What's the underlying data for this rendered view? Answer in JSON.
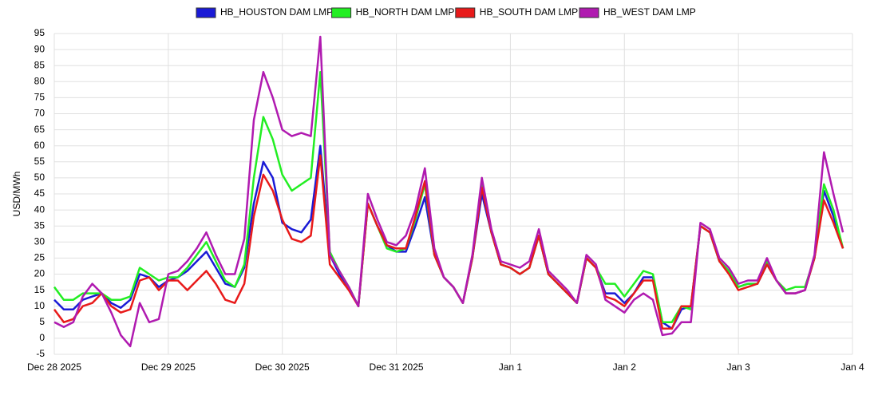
{
  "chart_data": {
    "type": "line",
    "y_label": "USD/MWh",
    "legend": "top",
    "grid": true,
    "x": [
      0,
      2,
      4,
      6,
      8,
      10,
      12,
      14,
      16,
      18,
      20,
      22,
      24,
      26,
      28,
      30,
      32,
      34,
      36,
      38,
      40,
      42,
      44,
      46,
      48,
      50,
      52,
      54,
      56,
      58,
      60,
      62,
      64,
      66,
      68,
      70,
      72,
      74,
      76,
      78,
      80,
      82,
      84,
      86,
      88,
      90,
      92,
      94,
      96,
      98,
      100,
      102,
      104,
      106,
      108,
      110,
      112,
      114,
      116,
      118,
      120,
      122,
      124,
      126,
      128,
      130,
      132,
      134,
      136,
      138,
      140,
      142,
      144,
      146,
      148,
      150,
      152,
      154,
      156,
      158,
      160,
      162,
      164,
      166
    ],
    "xlim": [
      0,
      168
    ],
    "xticks": [
      {
        "value": 0,
        "label": "Dec 28 2025"
      },
      {
        "value": 24,
        "label": "Dec 29 2025"
      },
      {
        "value": 48,
        "label": "Dec 30 2025"
      },
      {
        "value": 72,
        "label": "Dec 31 2025"
      },
      {
        "value": 96,
        "label": "Jan 1"
      },
      {
        "value": 120,
        "label": "Jan 2"
      },
      {
        "value": 144,
        "label": "Jan 3"
      },
      {
        "value": 168,
        "label": "Jan 4"
      }
    ],
    "ylim": [
      -5,
      95
    ],
    "yticks": [
      -5,
      0,
      5,
      10,
      15,
      20,
      25,
      30,
      35,
      40,
      45,
      50,
      55,
      60,
      65,
      70,
      75,
      80,
      85,
      90,
      95
    ],
    "series": [
      {
        "name": "HB_HOUSTON DAM LMP",
        "color": "#1a1ad6",
        "values": [
          12,
          9,
          9,
          12,
          13,
          14,
          11,
          9.5,
          12,
          20,
          19,
          16,
          18,
          19,
          21,
          24,
          27,
          22,
          17,
          16,
          22,
          42,
          55,
          50,
          36,
          34,
          33,
          37,
          60,
          26,
          20,
          16,
          10,
          42,
          35,
          29,
          27,
          27,
          35,
          44,
          26,
          19,
          16,
          11,
          25,
          45,
          33,
          23,
          22,
          20,
          22,
          32,
          20,
          17,
          14,
          11,
          25,
          22,
          14,
          14,
          11,
          14,
          19,
          19,
          5,
          3,
          9,
          10,
          35,
          33,
          24,
          21,
          16,
          17,
          17,
          23,
          18,
          14,
          14,
          15,
          25,
          46,
          38,
          28
        ]
      },
      {
        "name": "HB_NORTH DAM LMP",
        "color": "#22ee22",
        "values": [
          16,
          12,
          12,
          14,
          14,
          14,
          12,
          12,
          13,
          22,
          20,
          18,
          19,
          19,
          22,
          26,
          30,
          24,
          18,
          16,
          23,
          50,
          69,
          62,
          51,
          46,
          48,
          50,
          83,
          27,
          21,
          16,
          10,
          42,
          35,
          28,
          27,
          28,
          37,
          48,
          26,
          19,
          16,
          11,
          25,
          48,
          33,
          23,
          22,
          20,
          22,
          32,
          20,
          17,
          14,
          11,
          25,
          22,
          17,
          17,
          13,
          17,
          21,
          20,
          5,
          5,
          10,
          9,
          35,
          33,
          24,
          21,
          16,
          17,
          17,
          24,
          18,
          15,
          16,
          16,
          25,
          48,
          40,
          28
        ]
      },
      {
        "name": "HB_SOUTH DAM LMP",
        "color": "#e81a1a",
        "values": [
          9,
          5,
          6,
          10,
          11,
          14,
          10,
          8,
          9,
          18,
          19,
          15,
          18,
          18,
          15,
          18,
          21,
          17,
          12,
          11,
          17,
          38,
          51,
          46,
          37,
          31,
          30,
          32,
          57,
          23,
          19,
          15,
          10,
          42,
          35,
          29,
          28,
          28,
          38,
          49,
          26,
          19,
          16,
          11,
          25,
          47,
          33,
          23,
          22,
          20,
          22,
          32,
          20,
          17,
          14,
          11,
          25,
          22,
          13,
          12,
          10,
          14,
          18,
          18,
          3,
          3,
          10,
          10,
          35,
          33,
          24,
          20,
          15,
          16,
          17,
          23,
          18,
          14,
          14,
          15,
          25,
          43,
          36,
          28
        ]
      },
      {
        "name": "HB_WEST DAM LMP",
        "color": "#b01ab0",
        "values": [
          5,
          3.5,
          5,
          13,
          17,
          14,
          8,
          1,
          -2.5,
          11,
          5,
          6,
          20,
          21,
          24,
          28,
          33,
          26,
          20,
          20,
          31,
          68,
          83,
          75,
          65,
          63,
          64,
          63,
          94,
          26,
          21,
          16,
          10,
          45,
          37,
          30,
          29,
          32,
          40,
          53,
          28,
          19,
          16,
          11,
          26,
          50,
          34,
          24,
          23,
          22,
          24,
          34,
          21,
          18,
          15,
          11,
          26,
          23,
          12,
          10,
          8,
          12,
          14,
          12,
          1,
          1.5,
          5,
          5,
          36,
          34,
          25,
          22,
          17,
          18,
          18,
          25,
          18,
          14,
          14,
          15,
          26,
          58,
          45,
          33
        ]
      }
    ]
  }
}
